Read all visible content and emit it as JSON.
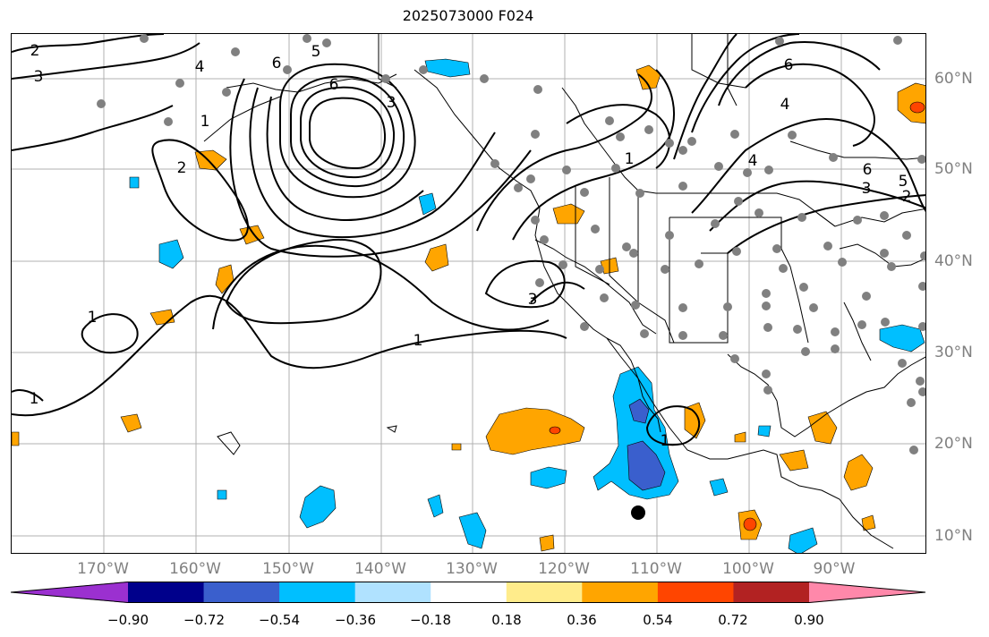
{
  "title": "2025073000 F024",
  "lon_labels": [
    "170°W",
    "160°W",
    "150°W",
    "140°W",
    "130°W",
    "120°W",
    "110°W",
    "100°W",
    "90°W"
  ],
  "lat_labels": [
    "60°N",
    "50°N",
    "40°N",
    "30°N",
    "20°N",
    "10°N"
  ],
  "contour_labels": [
    "2",
    "3",
    "4",
    "6",
    "5",
    "6",
    "1",
    "2",
    "3",
    "1",
    "1",
    "1",
    "3",
    "1",
    "6",
    "4",
    "4",
    "6",
    "5",
    "3",
    "2",
    "1"
  ],
  "colorbar": {
    "ticks": [
      "−0.90",
      "−0.72",
      "−0.54",
      "−0.36",
      "−0.18",
      "0.18",
      "0.36",
      "0.54",
      "0.72",
      "0.90"
    ],
    "colors": [
      "#9b30d0",
      "#00008b",
      "#3a5fcd",
      "#00bfff",
      "#b0e2ff",
      "#ffffff",
      "#ffec8b",
      "#ffa500",
      "#ff4500",
      "#b22222",
      "#ff88aa"
    ]
  },
  "colors": {
    "station": "#808080",
    "land_outline": "#000000",
    "grid": "#b0b0b0",
    "contour": "#000000"
  }
}
